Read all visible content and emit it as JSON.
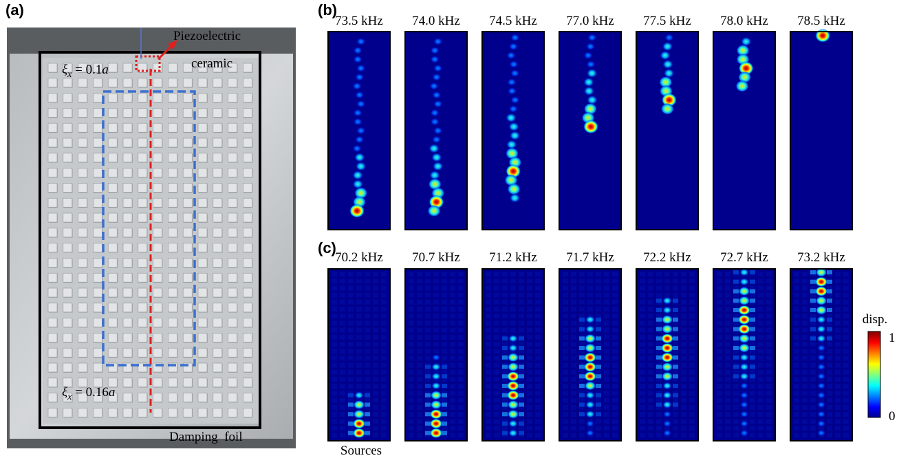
{
  "panel_a": {
    "label": "(a)",
    "source_label": [
      "Piezoelectric",
      "ceramic"
    ],
    "top_disorder": {
      "symbol": "ξ",
      "subscript": "x",
      "relation": " = 0.1",
      "unit": "a"
    },
    "bottom_disorder": {
      "symbol": "ξ",
      "subscript": "x",
      "relation": " = 0.16",
      "unit": "a"
    },
    "damping_label": "Damping  foil"
  },
  "panel_b": {
    "label": "(b)",
    "frequencies": [
      "73.5 kHz",
      "74.0 kHz",
      "74.5 kHz",
      "77.0 kHz",
      "77.5 kHz",
      "78.0 kHz",
      "78.5 kHz"
    ]
  },
  "panel_c": {
    "label": "(c)",
    "frequencies": [
      "70.2 kHz",
      "70.7 kHz",
      "71.2 kHz",
      "71.7 kHz",
      "72.2 kHz",
      "72.7 kHz",
      "73.2 kHz"
    ],
    "source_label": "Sources"
  },
  "colorbar": {
    "title": "disp.",
    "max_label": "1",
    "min_label": "0"
  }
}
